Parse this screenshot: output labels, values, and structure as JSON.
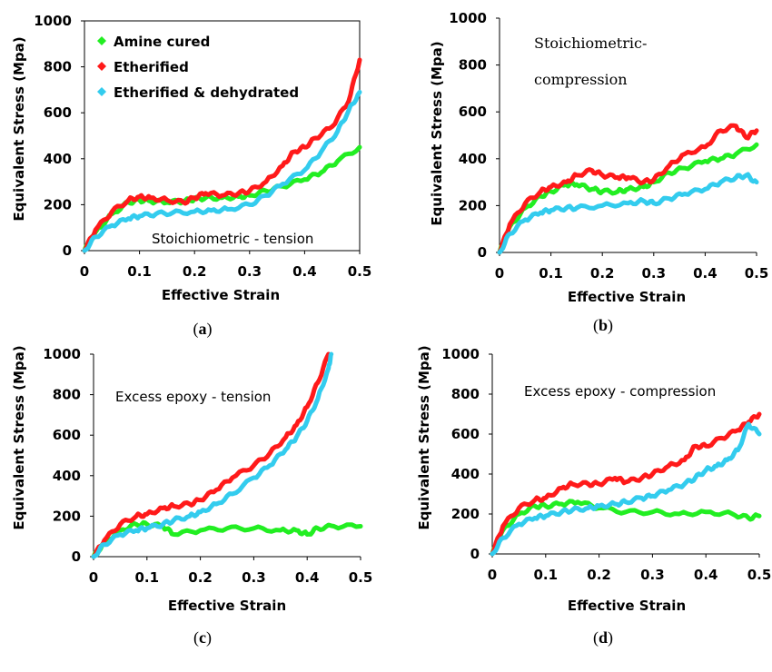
{
  "colors": {
    "amine": "#22ee22",
    "etherified": "#ff1a1a",
    "dehydrated": "#33ccee"
  },
  "legend": [
    {
      "label": "Amine cured",
      "color": "#22ee22"
    },
    {
      "label": "Etherified",
      "color": "#ff1a1a"
    },
    {
      "label": "Etherified & dehydrated",
      "color": "#33ccee"
    }
  ],
  "captions": {
    "a": {
      "letter": "a",
      "open": "(",
      "close": ")"
    },
    "b": {
      "letter": "b",
      "open": "(",
      "close": ")"
    },
    "c": {
      "letter": "c",
      "open": "(",
      "close": ")"
    },
    "d": {
      "letter": "d",
      "open": "(",
      "close": ")"
    }
  },
  "chart_data": [
    {
      "type": "line",
      "annotation": "Stoichiometric - tension",
      "xlabel": "Effective Strain",
      "ylabel": "Equivalent Stress (Mpa)",
      "xlim": [
        0,
        0.5
      ],
      "ylim": [
        0,
        1000
      ],
      "xticks": [
        "0",
        "0.1",
        "0.2",
        "0.3",
        "0.4",
        "0.5"
      ],
      "yticks": [
        "0",
        "200",
        "400",
        "600",
        "800",
        "1000"
      ],
      "legend_position": "top-left",
      "series": [
        {
          "name": "Amine cured",
          "x": [
            0,
            0.02,
            0.05,
            0.08,
            0.1,
            0.12,
            0.15,
            0.18,
            0.2,
            0.22,
            0.25,
            0.28,
            0.3,
            0.33,
            0.36,
            0.4,
            0.43,
            0.46,
            0.5
          ],
          "y": [
            0,
            80,
            160,
            210,
            220,
            215,
            210,
            215,
            225,
            230,
            230,
            235,
            240,
            260,
            280,
            310,
            340,
            390,
            450
          ]
        },
        {
          "name": "Etherified",
          "x": [
            0,
            0.02,
            0.05,
            0.08,
            0.1,
            0.12,
            0.15,
            0.18,
            0.2,
            0.22,
            0.25,
            0.28,
            0.3,
            0.33,
            0.36,
            0.38,
            0.4,
            0.42,
            0.45,
            0.48,
            0.5
          ],
          "y": [
            0,
            90,
            170,
            220,
            235,
            230,
            220,
            210,
            230,
            250,
            240,
            250,
            260,
            300,
            370,
            430,
            450,
            490,
            540,
            650,
            830
          ]
        },
        {
          "name": "Etherified & dehydrated",
          "x": [
            0,
            0.02,
            0.05,
            0.08,
            0.1,
            0.13,
            0.16,
            0.2,
            0.23,
            0.26,
            0.3,
            0.33,
            0.36,
            0.4,
            0.43,
            0.46,
            0.48,
            0.5
          ],
          "y": [
            0,
            60,
            110,
            140,
            150,
            160,
            165,
            170,
            175,
            180,
            200,
            240,
            290,
            350,
            430,
            520,
            610,
            690
          ]
        }
      ]
    },
    {
      "type": "line",
      "annotation": "Stoichiometric-compression",
      "annotation_lines": [
        "Stoichiometric-",
        "compression"
      ],
      "xlabel": "Effective Strain",
      "ylabel": "Equivalent Stress (Mpa)",
      "xlim": [
        0,
        0.5
      ],
      "ylim": [
        0,
        1000
      ],
      "xticks": [
        "0",
        "0.1",
        "0.2",
        "0.3",
        "0.4",
        "0.5"
      ],
      "yticks": [
        "0",
        "200",
        "400",
        "600",
        "800",
        "1000"
      ],
      "series": [
        {
          "name": "Amine cured",
          "x": [
            0,
            0.02,
            0.05,
            0.08,
            0.1,
            0.13,
            0.15,
            0.18,
            0.2,
            0.23,
            0.25,
            0.28,
            0.3,
            0.33,
            0.36,
            0.4,
            0.43,
            0.46,
            0.5
          ],
          "y": [
            0,
            110,
            190,
            240,
            260,
            290,
            290,
            270,
            260,
            260,
            270,
            280,
            300,
            340,
            360,
            390,
            400,
            420,
            460
          ]
        },
        {
          "name": "Etherified",
          "x": [
            0,
            0.02,
            0.05,
            0.08,
            0.1,
            0.13,
            0.15,
            0.18,
            0.2,
            0.23,
            0.25,
            0.28,
            0.3,
            0.33,
            0.36,
            0.4,
            0.43,
            0.46,
            0.48,
            0.5
          ],
          "y": [
            0,
            120,
            210,
            260,
            280,
            300,
            330,
            350,
            330,
            320,
            320,
            300,
            310,
            370,
            420,
            450,
            520,
            540,
            490,
            520
          ]
        },
        {
          "name": "Etherified & dehydrated",
          "x": [
            0,
            0.02,
            0.05,
            0.08,
            0.1,
            0.13,
            0.15,
            0.2,
            0.25,
            0.28,
            0.3,
            0.33,
            0.36,
            0.4,
            0.43,
            0.46,
            0.48,
            0.5
          ],
          "y": [
            0,
            80,
            140,
            170,
            180,
            190,
            190,
            200,
            210,
            220,
            210,
            230,
            250,
            270,
            300,
            320,
            330,
            300
          ]
        }
      ]
    },
    {
      "type": "line",
      "annotation": "Excess epoxy - tension",
      "xlabel": "Effective Strain",
      "ylabel": "Equivalent Stress (Mpa)",
      "xlim": [
        0,
        0.5
      ],
      "ylim": [
        0,
        1000
      ],
      "xticks": [
        "0",
        "0.1",
        "0.2",
        "0.3",
        "0.4",
        "0.5"
      ],
      "yticks": [
        "0",
        "200",
        "400",
        "600",
        "800",
        "1000"
      ],
      "series": [
        {
          "name": "Amine cured",
          "x": [
            0,
            0.02,
            0.05,
            0.08,
            0.1,
            0.13,
            0.15,
            0.2,
            0.25,
            0.3,
            0.35,
            0.38,
            0.4,
            0.42,
            0.45,
            0.5
          ],
          "y": [
            0,
            70,
            130,
            160,
            160,
            150,
            110,
            130,
            140,
            140,
            130,
            130,
            110,
            140,
            150,
            150
          ]
        },
        {
          "name": "Etherified",
          "x": [
            0,
            0.02,
            0.05,
            0.08,
            0.1,
            0.13,
            0.15,
            0.18,
            0.2,
            0.23,
            0.26,
            0.3,
            0.33,
            0.36,
            0.38,
            0.4,
            0.42,
            0.44
          ],
          "y": [
            0,
            80,
            160,
            200,
            210,
            240,
            250,
            260,
            280,
            330,
            390,
            450,
            510,
            590,
            650,
            740,
            860,
            1000
          ]
        },
        {
          "name": "Etherified & dehydrated",
          "x": [
            0,
            0.02,
            0.05,
            0.08,
            0.1,
            0.13,
            0.15,
            0.18,
            0.2,
            0.23,
            0.26,
            0.3,
            0.33,
            0.36,
            0.38,
            0.4,
            0.42,
            0.44,
            0.445
          ],
          "y": [
            0,
            60,
            110,
            130,
            140,
            160,
            180,
            200,
            220,
            260,
            310,
            390,
            450,
            530,
            590,
            670,
            780,
            930,
            1000
          ]
        }
      ]
    },
    {
      "type": "line",
      "annotation": "Excess epoxy - compression",
      "xlabel": "Effective Strain",
      "ylabel": "Equivalent Stress (Mpa)",
      "xlim": [
        0,
        0.5
      ],
      "ylim": [
        0,
        1000
      ],
      "xticks": [
        "0",
        "0.1",
        "0.2",
        "0.3",
        "0.4",
        "0.5"
      ],
      "yticks": [
        "0",
        "200",
        "400",
        "600",
        "800",
        "1000"
      ],
      "series": [
        {
          "name": "Amine cured",
          "x": [
            0,
            0.02,
            0.05,
            0.08,
            0.1,
            0.13,
            0.16,
            0.2,
            0.25,
            0.3,
            0.35,
            0.4,
            0.45,
            0.48,
            0.5
          ],
          "y": [
            0,
            120,
            200,
            240,
            240,
            250,
            260,
            230,
            210,
            210,
            200,
            210,
            200,
            180,
            190
          ]
        },
        {
          "name": "Etherified",
          "x": [
            0,
            0.02,
            0.05,
            0.08,
            0.1,
            0.13,
            0.15,
            0.18,
            0.2,
            0.23,
            0.25,
            0.28,
            0.3,
            0.33,
            0.36,
            0.38,
            0.4,
            0.43,
            0.46,
            0.48,
            0.5
          ],
          "y": [
            0,
            140,
            230,
            270,
            280,
            330,
            350,
            350,
            350,
            380,
            360,
            380,
            400,
            440,
            470,
            540,
            540,
            580,
            620,
            660,
            700
          ]
        },
        {
          "name": "Etherified & dehydrated",
          "x": [
            0,
            0.02,
            0.05,
            0.08,
            0.1,
            0.13,
            0.15,
            0.18,
            0.2,
            0.23,
            0.25,
            0.28,
            0.3,
            0.33,
            0.36,
            0.38,
            0.4,
            0.42,
            0.44,
            0.46,
            0.48,
            0.5
          ],
          "y": [
            0,
            80,
            150,
            180,
            190,
            210,
            220,
            230,
            240,
            250,
            260,
            280,
            290,
            320,
            350,
            380,
            420,
            440,
            470,
            520,
            650,
            600
          ]
        }
      ]
    }
  ]
}
